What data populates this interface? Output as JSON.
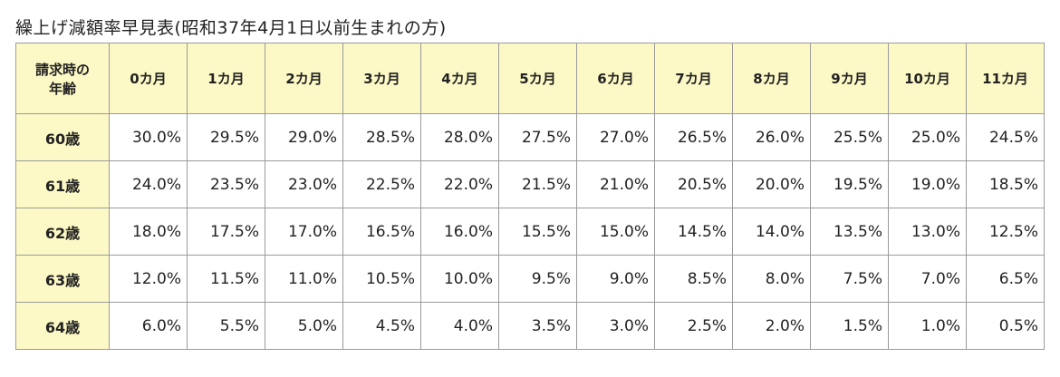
{
  "title": "繰上げ減額率早見表(昭和37年4月1日以前生まれの方)",
  "table": {
    "header": [
      "請求時の\n年齢",
      "0カ月",
      "1カ月",
      "2カ月",
      "3カ月",
      "4カ月",
      "5カ月",
      "6カ月",
      "7カ月",
      "8カ月",
      "9カ月",
      "10カ月",
      "11カ月"
    ],
    "rows": [
      [
        "60歳",
        "30.0%",
        "29.5%",
        "29.0%",
        "28.5%",
        "28.0%",
        "27.5%",
        "27.0%",
        "26.5%",
        "26.0%",
        "25.5%",
        "25.0%",
        "24.5%"
      ],
      [
        "61歳",
        "24.0%",
        "23.5%",
        "23.0%",
        "22.5%",
        "22.0%",
        "21.5%",
        "21.0%",
        "20.5%",
        "20.0%",
        "19.5%",
        "19.0%",
        "18.5%"
      ],
      [
        "62歳",
        "18.0%",
        "17.5%",
        "17.0%",
        "16.5%",
        "16.0%",
        "15.5%",
        "15.0%",
        "14.5%",
        "14.0%",
        "13.5%",
        "13.0%",
        "12.5%"
      ],
      [
        "63歳",
        "12.0%",
        "11.5%",
        "11.0%",
        "10.5%",
        "10.0%",
        "9.5%",
        "9.0%",
        "8.5%",
        "8.0%",
        "7.5%",
        "7.0%",
        "6.5%"
      ],
      [
        "64歳",
        "6.0%",
        "5.5%",
        "5.0%",
        "4.5%",
        "4.0%",
        "3.5%",
        "3.0%",
        "2.5%",
        "2.0%",
        "1.5%",
        "1.0%",
        "0.5%"
      ]
    ]
  }
}
